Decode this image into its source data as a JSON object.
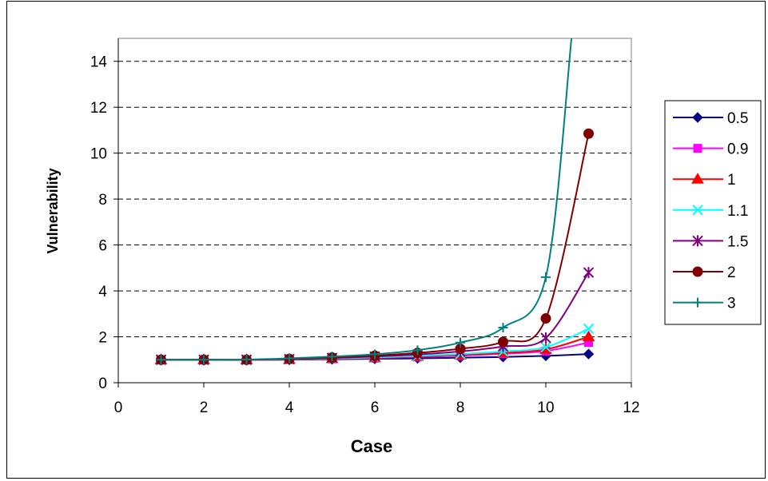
{
  "chart_data": {
    "type": "line",
    "title": "",
    "xlabel": "Case",
    "ylabel": "Vulnerability",
    "xlim": [
      0,
      12
    ],
    "ylim": [
      0,
      15
    ],
    "xticks": [
      "0",
      "2",
      "4",
      "6",
      "8",
      "10",
      "12"
    ],
    "yticks": [
      "0",
      "2",
      "4",
      "6",
      "8",
      "10",
      "12",
      "14"
    ],
    "grid": "horizontal dashed",
    "legend_position": "right",
    "series": [
      {
        "name": "0.5",
        "color": "#000080",
        "marker": "diamond",
        "x": [
          1,
          2,
          3,
          4,
          5,
          6,
          7,
          8,
          9,
          10,
          11
        ],
        "y": [
          1,
          1,
          1,
          1,
          1.02,
          1.04,
          1.06,
          1.09,
          1.12,
          1.17,
          1.25
        ]
      },
      {
        "name": "0.9",
        "color": "#ff00ff",
        "marker": "square",
        "x": [
          1,
          2,
          3,
          4,
          5,
          6,
          7,
          8,
          9,
          10,
          11
        ],
        "y": [
          1,
          1,
          1,
          1.01,
          1.04,
          1.07,
          1.12,
          1.18,
          1.26,
          1.38,
          1.75
        ]
      },
      {
        "name": "1",
        "color": "#ff0000",
        "marker": "triangle",
        "x": [
          1,
          2,
          3,
          4,
          5,
          6,
          7,
          8,
          9,
          10,
          11
        ],
        "y": [
          1,
          1,
          1,
          1.01,
          1.05,
          1.08,
          1.14,
          1.21,
          1.3,
          1.45,
          2.0
        ]
      },
      {
        "name": "1.1",
        "color": "#00ffff",
        "marker": "x",
        "x": [
          1,
          2,
          3,
          4,
          5,
          6,
          7,
          8,
          9,
          10,
          11
        ],
        "y": [
          1,
          1,
          1,
          1.02,
          1.06,
          1.1,
          1.17,
          1.25,
          1.36,
          1.55,
          2.35
        ]
      },
      {
        "name": "1.5",
        "color": "#800080",
        "marker": "star",
        "x": [
          1,
          2,
          3,
          4,
          5,
          6,
          7,
          8,
          9,
          10,
          11
        ],
        "y": [
          1,
          1,
          1,
          1.03,
          1.08,
          1.14,
          1.23,
          1.36,
          1.58,
          1.95,
          4.8
        ]
      },
      {
        "name": "2",
        "color": "#800000",
        "marker": "circle",
        "x": [
          1,
          2,
          3,
          4,
          5,
          6,
          7,
          8,
          9,
          10,
          11
        ],
        "y": [
          1,
          1,
          1,
          1.04,
          1.1,
          1.18,
          1.3,
          1.48,
          1.78,
          2.8,
          10.85
        ]
      },
      {
        "name": "3",
        "color": "#008080",
        "marker": "plus",
        "x": [
          1,
          2,
          3,
          4,
          5,
          6,
          7,
          8,
          9,
          10,
          10.6
        ],
        "y": [
          1,
          1,
          1.01,
          1.06,
          1.14,
          1.24,
          1.42,
          1.75,
          2.4,
          4.6,
          15
        ]
      }
    ]
  }
}
